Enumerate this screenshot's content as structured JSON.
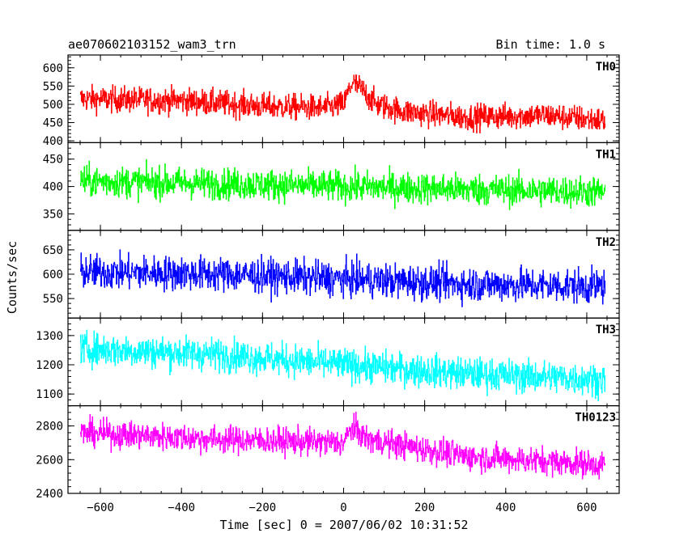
{
  "chart_data": {
    "type": "line",
    "title": "ae070602103152_wam3_trn",
    "bin_time_label": "Bin time: 1.0 s",
    "xlabel": "Time [sec] 0 = 2007/06/02 10:31:52",
    "ylabel": "Counts/sec",
    "xlim": [
      -680,
      680
    ],
    "x_range_data": [
      -650,
      645
    ],
    "x_ticks": [
      -600,
      -400,
      -200,
      0,
      200,
      400,
      600
    ],
    "x_tick_labels": [
      "−600",
      "−400",
      "−200",
      "0",
      "200",
      "400",
      "600"
    ],
    "panels": [
      {
        "name": "TH0",
        "color": "#ff0000",
        "ylim": [
          395,
          635
        ],
        "yticks": [
          400,
          450,
          500,
          550,
          600
        ],
        "profile": [
          [
            -650,
            515
          ],
          [
            -400,
            510
          ],
          [
            -200,
            495
          ],
          [
            -50,
            490
          ],
          [
            0,
            500
          ],
          [
            20,
            560
          ],
          [
            40,
            545
          ],
          [
            80,
            500
          ],
          [
            150,
            480
          ],
          [
            300,
            465
          ],
          [
            500,
            470
          ],
          [
            645,
            455
          ]
        ],
        "noise_amplitude": 35
      },
      {
        "name": "TH1",
        "color": "#00ff00",
        "ylim": [
          320,
          480
        ],
        "yticks": [
          350,
          400,
          450
        ],
        "profile": [
          [
            -650,
            410
          ],
          [
            -300,
            405
          ],
          [
            0,
            400
          ],
          [
            300,
            395
          ],
          [
            645,
            390
          ]
        ],
        "noise_amplitude": 28
      },
      {
        "name": "TH2",
        "color": "#0000ff",
        "ylim": [
          510,
          690
        ],
        "yticks": [
          550,
          600,
          650
        ],
        "profile": [
          [
            -650,
            605
          ],
          [
            -300,
            600
          ],
          [
            0,
            590
          ],
          [
            300,
            580
          ],
          [
            645,
            575
          ]
        ],
        "noise_amplitude": 35
      },
      {
        "name": "TH3",
        "color": "#00ffff",
        "ylim": [
          1060,
          1360
        ],
        "yticks": [
          1100,
          1200,
          1300
        ],
        "profile": [
          [
            -650,
            1255
          ],
          [
            -300,
            1235
          ],
          [
            0,
            1200
          ],
          [
            300,
            1170
          ],
          [
            645,
            1150
          ]
        ],
        "noise_amplitude": 55
      },
      {
        "name": "TH0123",
        "color": "#ff00ff",
        "ylim": [
          2400,
          2920
        ],
        "yticks": [
          2400,
          2600,
          2800
        ],
        "profile": [
          [
            -650,
            2760
          ],
          [
            -300,
            2720
          ],
          [
            0,
            2700
          ],
          [
            20,
            2790
          ],
          [
            60,
            2720
          ],
          [
            300,
            2620
          ],
          [
            645,
            2570
          ]
        ],
        "noise_amplitude": 80
      }
    ]
  }
}
